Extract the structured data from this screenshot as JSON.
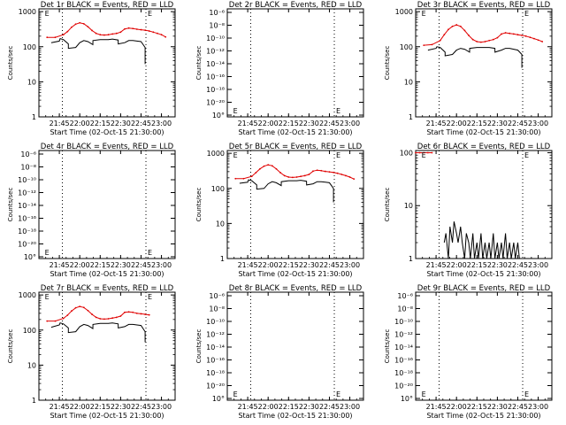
{
  "figure": {
    "x_tick_labels": [
      "21:45",
      "22:00",
      "22:15",
      "22:30",
      "22:45",
      "23:00"
    ],
    "x_tick_hours": [
      21.75,
      22.0,
      22.25,
      22.5,
      22.75,
      23.0
    ],
    "x_range": [
      21.5,
      23.167
    ],
    "vlines_hours": [
      21.787,
      22.81
    ],
    "e_marker_hours": [
      21.55,
      22.81
    ],
    "colors": {
      "events": "#000000",
      "lld": "#e00000",
      "axes": "#000000",
      "background": "#ffffff"
    }
  },
  "chart_data": [
    {
      "type": "line",
      "title": "Det 1r BLACK = Events, RED = LLD",
      "xlabel": "Start Time (02-Oct-15 21:30:00)",
      "ylabel": "Counts/sec",
      "yscale": "log",
      "ylim": [
        1,
        1200
      ],
      "y_tick_labels": [
        "1",
        "10",
        "100",
        "1000"
      ],
      "y_tick_values": [
        1,
        10,
        100,
        1000
      ],
      "series": [
        {
          "name": "RED = LLD",
          "color": "#e00000",
          "x": [
            21.6,
            21.7,
            21.8,
            21.85,
            21.9,
            21.95,
            22.0,
            22.05,
            22.1,
            22.15,
            22.2,
            22.25,
            22.3,
            22.35,
            22.4,
            22.45,
            22.5,
            22.55,
            22.6,
            22.65,
            22.7,
            22.75,
            22.8,
            22.85,
            22.9,
            22.95,
            23.0,
            23.05
          ],
          "y": [
            185,
            185,
            220,
            270,
            360,
            440,
            480,
            450,
            370,
            290,
            240,
            220,
            215,
            220,
            230,
            240,
            260,
            320,
            340,
            330,
            315,
            305,
            295,
            280,
            260,
            240,
            220,
            190
          ]
        },
        {
          "name": "BLACK = Events",
          "color": "#000000",
          "x": [
            21.65,
            21.75,
            21.76,
            21.8,
            21.86,
            21.861,
            21.95,
            22.0,
            22.05,
            22.1,
            22.16,
            22.161,
            22.25,
            22.3,
            22.35,
            22.4,
            22.47,
            22.471,
            22.55,
            22.6,
            22.65,
            22.7,
            22.75,
            22.8,
            22.8
          ],
          "y": [
            130,
            145,
            170,
            160,
            120,
            90,
            95,
            130,
            150,
            140,
            115,
            150,
            160,
            160,
            160,
            165,
            155,
            120,
            130,
            150,
            150,
            145,
            140,
            95,
            32
          ]
        }
      ]
    },
    {
      "type": "line",
      "title": "Det 2r BLACK = Events, RED = LLD",
      "xlabel": "Start Time (02-Oct-15 21:30:00)",
      "ylabel": "Counts/sec",
      "yscale": "log",
      "ylim": [
        1e-06,
        1e-16
      ],
      "y_tick_labels": [
        "10⁻⁶",
        "10⁻⁸",
        "10⁻¹⁰",
        "10⁻¹²",
        "10⁻¹⁴",
        "10⁻¹⁶",
        "10⁻¹⁸",
        "10⁻²⁰",
        "10°"
      ],
      "series": []
    },
    {
      "type": "line",
      "title": "Det 3r BLACK = Events, RED = LLD",
      "xlabel": "Start Time (02-Oct-15 21:30:00)",
      "ylabel": "Counts/sec",
      "yscale": "log",
      "ylim": [
        1,
        1200
      ],
      "y_tick_labels": [
        "1",
        "10",
        "100",
        "1000"
      ],
      "y_tick_values": [
        1,
        10,
        100,
        1000
      ],
      "series": [
        {
          "name": "RED = LLD",
          "color": "#e00000",
          "x": [
            21.6,
            21.7,
            21.8,
            21.85,
            21.9,
            21.95,
            22.0,
            22.05,
            22.1,
            22.15,
            22.2,
            22.25,
            22.3,
            22.35,
            22.4,
            22.45,
            22.5,
            22.55,
            22.6,
            22.65,
            22.7,
            22.75,
            22.8,
            22.85,
            22.9,
            22.95,
            23.0,
            23.05
          ],
          "y": [
            110,
            115,
            150,
            220,
            310,
            380,
            420,
            380,
            290,
            210,
            160,
            140,
            135,
            140,
            150,
            160,
            180,
            230,
            250,
            240,
            230,
            220,
            210,
            200,
            185,
            170,
            155,
            140
          ]
        },
        {
          "name": "BLACK = Events",
          "color": "#000000",
          "x": [
            21.65,
            21.75,
            21.76,
            21.8,
            21.86,
            21.861,
            21.95,
            22.0,
            22.05,
            22.1,
            22.16,
            22.161,
            22.25,
            22.3,
            22.35,
            22.4,
            22.47,
            22.471,
            22.55,
            22.6,
            22.65,
            22.7,
            22.75,
            22.8,
            22.8
          ],
          "y": [
            80,
            90,
            100,
            95,
            70,
            55,
            60,
            80,
            90,
            85,
            70,
            90,
            95,
            95,
            95,
            95,
            90,
            70,
            80,
            90,
            90,
            85,
            80,
            60,
            25
          ]
        }
      ]
    },
    {
      "type": "line",
      "title": "Det 4r BLACK = Events, RED = LLD",
      "xlabel": "Start Time (02-Oct-15 21:30:00)",
      "ylabel": "Counts/sec",
      "yscale": "log",
      "ylim": [
        1e-06,
        1e-16
      ],
      "y_tick_labels": [
        "10⁻⁶",
        "10⁻⁸",
        "10⁻¹⁰",
        "10⁻¹²",
        "10⁻¹⁴",
        "10⁻¹⁶",
        "10⁻¹⁸",
        "10⁻²⁰",
        "10°"
      ],
      "series": []
    },
    {
      "type": "line",
      "title": "Det 5r BLACK = Events, RED = LLD",
      "xlabel": "Start Time (02-Oct-15 21:30:00)",
      "ylabel": "Counts/sec",
      "yscale": "log",
      "ylim": [
        1,
        1200
      ],
      "y_tick_labels": [
        "1",
        "10",
        "100",
        "1000"
      ],
      "y_tick_values": [
        1,
        10,
        100,
        1000
      ],
      "series": [
        {
          "name": "RED = LLD",
          "color": "#e00000",
          "x": [
            21.6,
            21.7,
            21.8,
            21.85,
            21.9,
            21.95,
            22.0,
            22.05,
            22.1,
            22.15,
            22.2,
            22.25,
            22.3,
            22.35,
            22.4,
            22.45,
            22.5,
            22.55,
            22.6,
            22.65,
            22.7,
            22.75,
            22.8,
            22.85,
            22.9,
            22.95,
            23.0,
            23.05
          ],
          "y": [
            190,
            190,
            220,
            280,
            360,
            430,
            470,
            440,
            360,
            280,
            230,
            210,
            205,
            210,
            220,
            230,
            250,
            310,
            330,
            320,
            305,
            295,
            285,
            270,
            250,
            230,
            210,
            185
          ]
        },
        {
          "name": "BLACK = Events",
          "color": "#000000",
          "x": [
            21.65,
            21.75,
            21.76,
            21.8,
            21.86,
            21.861,
            21.95,
            22.0,
            22.05,
            22.1,
            22.16,
            22.161,
            22.25,
            22.3,
            22.35,
            22.4,
            22.47,
            22.471,
            22.55,
            22.6,
            22.65,
            22.7,
            22.75,
            22.8,
            22.8
          ],
          "y": [
            140,
            150,
            175,
            165,
            125,
            95,
            100,
            135,
            155,
            145,
            120,
            155,
            165,
            165,
            165,
            170,
            160,
            125,
            135,
            155,
            155,
            150,
            145,
            100,
            40
          ]
        }
      ]
    },
    {
      "type": "line",
      "title": "Det 6r BLACK = Events, RED = LLD",
      "xlabel": "Start Time (02-Oct-15 21:30:00)",
      "ylabel": "Counts/sec",
      "yscale": "log",
      "ylim": [
        1,
        110
      ],
      "y_tick_labels": [
        "1",
        "10",
        "100"
      ],
      "y_tick_values": [
        1,
        10,
        100
      ],
      "series": [
        {
          "name": "RED = LLD",
          "color": "#e00000",
          "x": [
            21.5,
            21.55,
            21.6,
            21.65,
            21.7
          ],
          "y": [
            100,
            100,
            100,
            100,
            100
          ]
        },
        {
          "name": "BLACK = Events",
          "color": "#000000",
          "x": [
            21.85,
            21.87,
            21.9,
            21.92,
            21.95,
            21.97,
            22.0,
            22.02,
            22.05,
            22.07,
            22.1,
            22.12,
            22.15,
            22.17,
            22.2,
            22.22,
            22.25,
            22.27,
            22.3,
            22.32,
            22.35,
            22.37,
            22.4,
            22.42,
            22.45,
            22.47,
            22.5,
            22.52,
            22.55,
            22.57,
            22.6,
            22.62,
            22.65,
            22.67,
            22.7,
            22.72,
            22.75,
            22.77,
            22.8
          ],
          "y": [
            2,
            3,
            1,
            4,
            2,
            5,
            3,
            2,
            4,
            2,
            1,
            3,
            2,
            1,
            3,
            1,
            2,
            1,
            3,
            1,
            2,
            1,
            2,
            1,
            3,
            1,
            2,
            1,
            2,
            1,
            3,
            1,
            2,
            1,
            2,
            1,
            2,
            1,
            1
          ]
        }
      ]
    },
    {
      "type": "line",
      "title": "Det 7r BLACK = Events, RED = LLD",
      "xlabel": "Start Time (02-Oct-15 21:30:00)",
      "ylabel": "Counts/sec",
      "yscale": "log",
      "ylim": [
        1,
        1200
      ],
      "y_tick_labels": [
        "1",
        "10",
        "100",
        "1000"
      ],
      "y_tick_values": [
        1,
        10,
        100,
        1000
      ],
      "series": [
        {
          "name": "RED = LLD",
          "color": "#e00000",
          "x": [
            21.6,
            21.7,
            21.8,
            21.85,
            21.9,
            21.95,
            22.0,
            22.05,
            22.1,
            22.15,
            22.2,
            22.25,
            22.3,
            22.35,
            22.4,
            22.45,
            22.5,
            22.55,
            22.6,
            22.65,
            22.7,
            22.75,
            22.8,
            22.85
          ],
          "y": [
            180,
            180,
            215,
            265,
            350,
            430,
            470,
            440,
            360,
            280,
            230,
            210,
            205,
            210,
            220,
            230,
            250,
            320,
            330,
            320,
            300,
            290,
            280,
            270
          ]
        },
        {
          "name": "BLACK = Events",
          "color": "#000000",
          "x": [
            21.65,
            21.75,
            21.76,
            21.8,
            21.86,
            21.861,
            21.95,
            22.0,
            22.05,
            22.1,
            22.16,
            22.161,
            22.25,
            22.3,
            22.35,
            22.4,
            22.47,
            22.471,
            22.55,
            22.6,
            22.65,
            22.7,
            22.75,
            22.8,
            22.8
          ],
          "y": [
            120,
            140,
            160,
            150,
            115,
            85,
            90,
            125,
            145,
            135,
            110,
            145,
            155,
            155,
            155,
            160,
            150,
            115,
            125,
            145,
            145,
            140,
            135,
            90,
            45
          ]
        }
      ]
    },
    {
      "type": "line",
      "title": "Det 8r BLACK = Events, RED = LLD",
      "xlabel": "Start Time (02-Oct-15 21:30:00)",
      "ylabel": "Counts/sec",
      "yscale": "log",
      "ylim": [
        1e-06,
        1e-16
      ],
      "y_tick_labels": [
        "10⁻⁶",
        "10⁻⁸",
        "10⁻¹⁰",
        "10⁻¹²",
        "10⁻¹⁴",
        "10⁻¹⁶",
        "10⁻¹⁸",
        "10⁻²⁰",
        "10°"
      ],
      "series": []
    },
    {
      "type": "line",
      "title": "Det 9r BLACK = Events, RED = LLD",
      "xlabel": "Start Time (02-Oct-15 21:30:00)",
      "ylabel": "Counts/sec",
      "yscale": "log",
      "ylim": [
        1e-06,
        1e-16
      ],
      "y_tick_labels": [
        "10⁻⁶",
        "10⁻⁸",
        "10⁻¹⁰",
        "10⁻¹²",
        "10⁻¹⁴",
        "10⁻¹⁶",
        "10⁻¹⁸",
        "10⁻²⁰",
        "10°"
      ],
      "series": []
    }
  ]
}
